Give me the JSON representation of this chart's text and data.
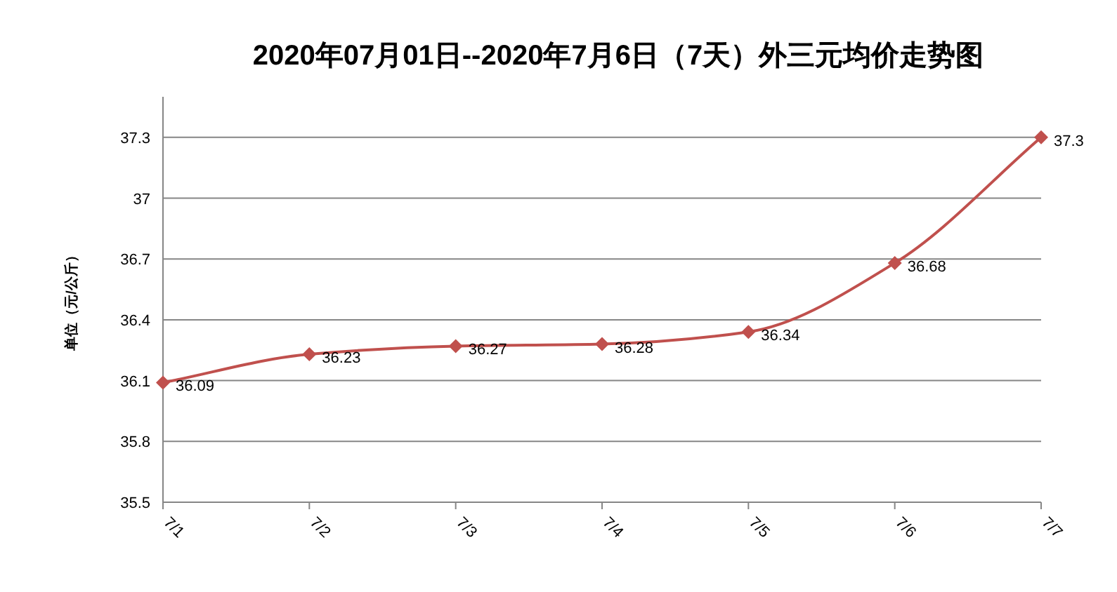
{
  "chart_data": {
    "type": "line",
    "title": "2020年07月01日--2020年7月6日（7天）外三元均价走势图",
    "ylabel": "单位（元/公斤）",
    "categories": [
      "7/1",
      "7/2",
      "7/3",
      "7/4",
      "7/5",
      "7/6",
      "7/7"
    ],
    "series": [
      {
        "color": "#c0504d",
        "values": [
          36.09,
          36.23,
          36.27,
          36.28,
          36.34,
          36.68,
          37.3
        ]
      }
    ],
    "ylim": [
      35.5,
      37.5
    ],
    "yticks": [
      35.5,
      35.8,
      36.1,
      36.4,
      36.7,
      37,
      37.3
    ],
    "grid": "y",
    "marker": "diamond",
    "line_style": "solid",
    "data_labels": true
  }
}
